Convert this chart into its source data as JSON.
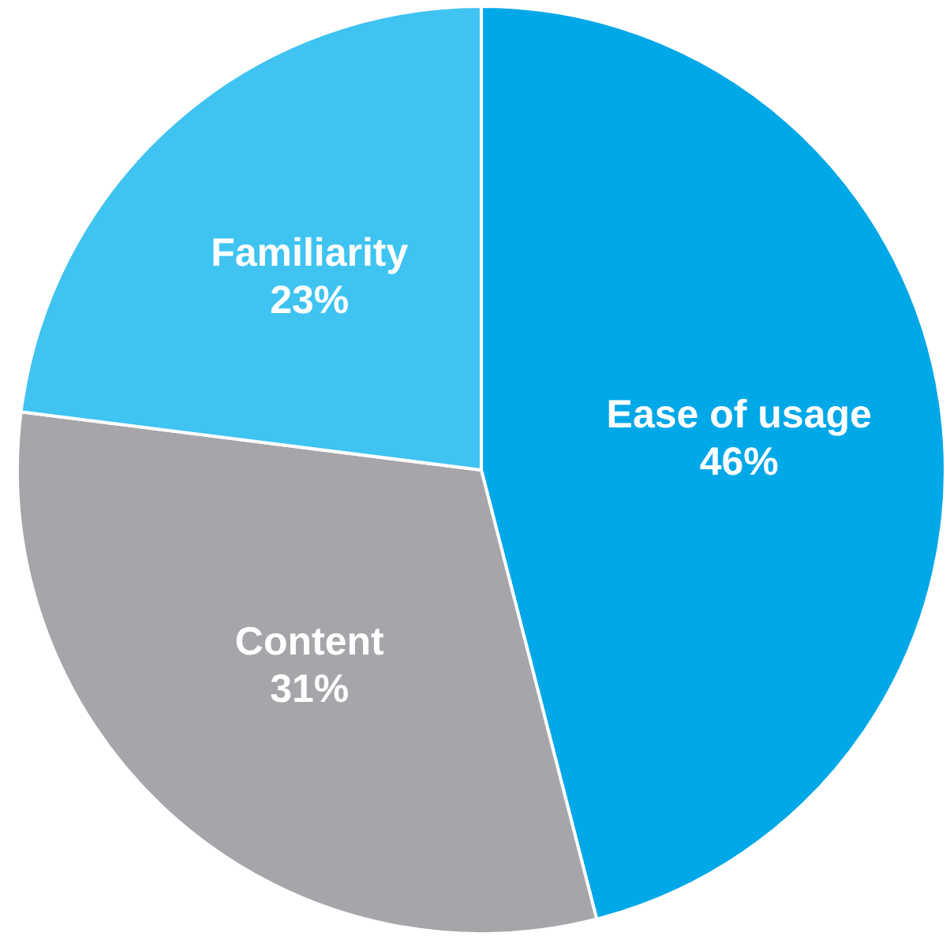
{
  "chart_data": {
    "type": "pie",
    "categories": [
      "Ease of usage",
      "Content",
      "Familiarity"
    ],
    "values": [
      46,
      31,
      23
    ],
    "colors": [
      "#00a8e8",
      "#a7a5aa",
      "#3fc3f1"
    ],
    "value_labels": [
      "46%",
      "31%",
      "23%"
    ],
    "legend": false
  }
}
